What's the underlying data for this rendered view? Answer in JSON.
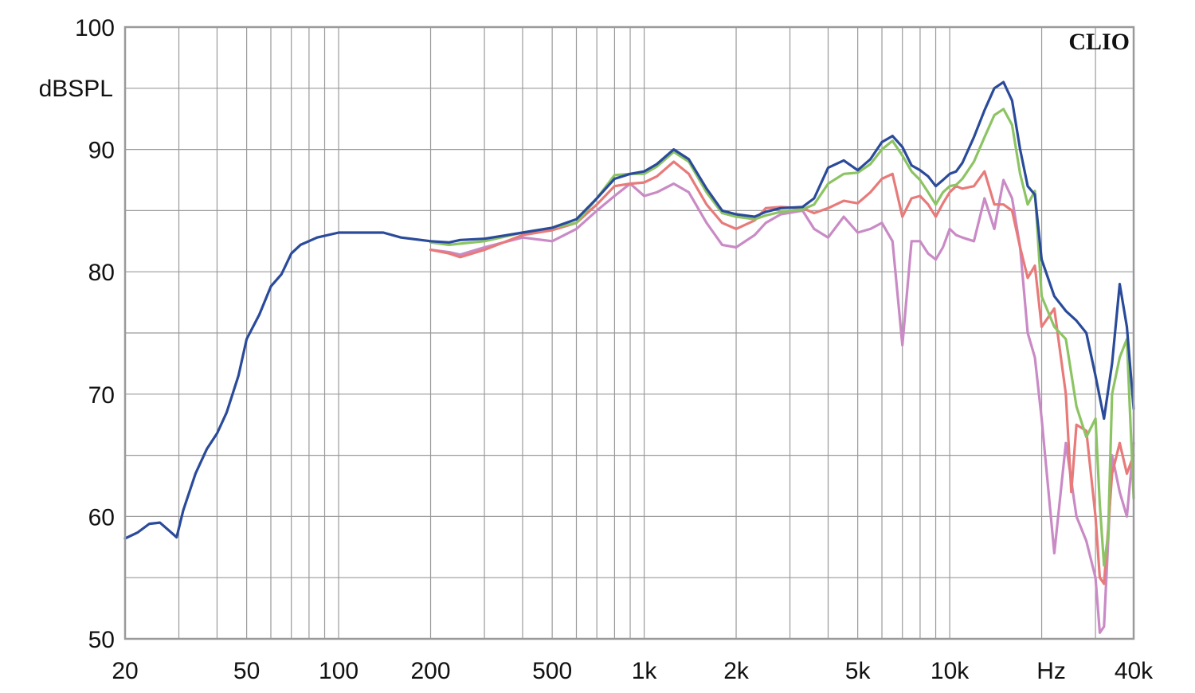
{
  "chart_data": {
    "type": "line",
    "brand": "CLIO",
    "ylabel": "dBSPL",
    "xunit": "Hz",
    "x_scale": "log",
    "xlim": [
      20,
      40000
    ],
    "ylim": [
      50,
      100
    ],
    "grid": true,
    "x_tick_labels": [
      {
        "value": 20,
        "label": "20"
      },
      {
        "value": 50,
        "label": "50"
      },
      {
        "value": 100,
        "label": "100"
      },
      {
        "value": 200,
        "label": "200"
      },
      {
        "value": 500,
        "label": "500"
      },
      {
        "value": 1000,
        "label": "1k"
      },
      {
        "value": 2000,
        "label": "2k"
      },
      {
        "value": 5000,
        "label": "5k"
      },
      {
        "value": 10000,
        "label": "10k"
      },
      {
        "value": 40000,
        "label": "40k"
      }
    ],
    "y_ticks": [
      50,
      60,
      70,
      80,
      90,
      100
    ],
    "series": [
      {
        "color": "#2a4a9a",
        "points": [
          [
            20,
            58.2
          ],
          [
            22,
            58.7
          ],
          [
            24,
            59.4
          ],
          [
            26,
            59.5
          ],
          [
            28,
            58.8
          ],
          [
            29.5,
            58.3
          ],
          [
            31,
            60.5
          ],
          [
            34,
            63.5
          ],
          [
            37,
            65.5
          ],
          [
            40,
            66.8
          ],
          [
            43,
            68.5
          ],
          [
            47,
            71.5
          ],
          [
            50,
            74.5
          ],
          [
            55,
            76.5
          ],
          [
            60,
            78.8
          ],
          [
            65,
            79.8
          ],
          [
            70,
            81.5
          ],
          [
            75,
            82.2
          ],
          [
            85,
            82.8
          ],
          [
            100,
            83.2
          ],
          [
            120,
            83.2
          ],
          [
            140,
            83.2
          ],
          [
            160,
            82.8
          ],
          [
            200,
            82.5
          ],
          [
            230,
            82.4
          ],
          [
            250,
            82.6
          ],
          [
            300,
            82.7
          ],
          [
            400,
            83.2
          ],
          [
            500,
            83.6
          ],
          [
            600,
            84.3
          ],
          [
            700,
            86.0
          ],
          [
            800,
            87.6
          ],
          [
            900,
            88.0
          ],
          [
            1000,
            88.2
          ],
          [
            1100,
            88.8
          ],
          [
            1250,
            90.0
          ],
          [
            1400,
            89.2
          ],
          [
            1600,
            86.8
          ],
          [
            1800,
            85.0
          ],
          [
            2000,
            84.7
          ],
          [
            2300,
            84.5
          ],
          [
            2500,
            84.9
          ],
          [
            2800,
            85.2
          ],
          [
            3300,
            85.3
          ],
          [
            3600,
            86.0
          ],
          [
            4000,
            88.5
          ],
          [
            4500,
            89.1
          ],
          [
            5000,
            88.3
          ],
          [
            5500,
            89.2
          ],
          [
            6000,
            90.6
          ],
          [
            6500,
            91.1
          ],
          [
            7000,
            90.2
          ],
          [
            7500,
            88.7
          ],
          [
            8000,
            88.3
          ],
          [
            8500,
            87.8
          ],
          [
            9000,
            87.0
          ],
          [
            9500,
            87.5
          ],
          [
            10000,
            88.0
          ],
          [
            10500,
            88.2
          ],
          [
            11000,
            88.9
          ],
          [
            12000,
            91.0
          ],
          [
            13000,
            93.2
          ],
          [
            14000,
            95.0
          ],
          [
            15000,
            95.5
          ],
          [
            16000,
            94.0
          ],
          [
            17000,
            90.0
          ],
          [
            18000,
            87.0
          ],
          [
            19000,
            86.3
          ],
          [
            20000,
            81.0
          ],
          [
            22000,
            78.0
          ],
          [
            24000,
            76.8
          ],
          [
            26000,
            76.0
          ],
          [
            28000,
            75.0
          ],
          [
            30000,
            71.5
          ],
          [
            32000,
            68.0
          ],
          [
            34000,
            72.5
          ],
          [
            36000,
            79.0
          ],
          [
            38000,
            75.5
          ],
          [
            40000,
            68.8
          ]
        ]
      },
      {
        "color": "#8cc464",
        "points": [
          [
            200,
            82.4
          ],
          [
            230,
            82.2
          ],
          [
            250,
            82.3
          ],
          [
            300,
            82.5
          ],
          [
            400,
            83.2
          ],
          [
            500,
            83.6
          ],
          [
            600,
            84.0
          ],
          [
            700,
            86.0
          ],
          [
            800,
            87.9
          ],
          [
            900,
            88.0
          ],
          [
            1000,
            88.0
          ],
          [
            1100,
            88.6
          ],
          [
            1250,
            89.8
          ],
          [
            1400,
            89.0
          ],
          [
            1600,
            86.5
          ],
          [
            1800,
            84.8
          ],
          [
            2000,
            84.5
          ],
          [
            2300,
            84.3
          ],
          [
            2500,
            84.6
          ],
          [
            2800,
            84.9
          ],
          [
            3300,
            85.1
          ],
          [
            3600,
            85.5
          ],
          [
            4000,
            87.2
          ],
          [
            4500,
            88.0
          ],
          [
            5000,
            88.1
          ],
          [
            5500,
            88.8
          ],
          [
            6000,
            90.0
          ],
          [
            6500,
            90.7
          ],
          [
            7000,
            89.5
          ],
          [
            7500,
            88.2
          ],
          [
            8000,
            87.5
          ],
          [
            8500,
            86.5
          ],
          [
            9000,
            85.5
          ],
          [
            9500,
            86.5
          ],
          [
            10000,
            87.0
          ],
          [
            10500,
            87.1
          ],
          [
            11000,
            87.6
          ],
          [
            12000,
            89.0
          ],
          [
            13000,
            91.0
          ],
          [
            14000,
            92.8
          ],
          [
            15000,
            93.3
          ],
          [
            16000,
            92.0
          ],
          [
            17000,
            88.0
          ],
          [
            18000,
            85.5
          ],
          [
            19000,
            86.6
          ],
          [
            20000,
            78.0
          ],
          [
            22000,
            75.5
          ],
          [
            24000,
            74.5
          ],
          [
            26000,
            69.0
          ],
          [
            28000,
            66.5
          ],
          [
            30000,
            68.0
          ],
          [
            31000,
            61.0
          ],
          [
            32000,
            56.0
          ],
          [
            33000,
            58.5
          ],
          [
            34000,
            70.0
          ],
          [
            36000,
            73.0
          ],
          [
            38000,
            74.5
          ],
          [
            40000,
            61.5
          ]
        ]
      },
      {
        "color": "#e87a7a",
        "points": [
          [
            200,
            81.8
          ],
          [
            230,
            81.5
          ],
          [
            250,
            81.2
          ],
          [
            300,
            81.8
          ],
          [
            400,
            83.0
          ],
          [
            500,
            83.4
          ],
          [
            600,
            84.0
          ],
          [
            700,
            85.5
          ],
          [
            800,
            87.0
          ],
          [
            900,
            87.2
          ],
          [
            1000,
            87.3
          ],
          [
            1100,
            87.8
          ],
          [
            1250,
            89.0
          ],
          [
            1400,
            88.0
          ],
          [
            1600,
            85.5
          ],
          [
            1800,
            84.0
          ],
          [
            2000,
            83.5
          ],
          [
            2300,
            84.2
          ],
          [
            2500,
            85.2
          ],
          [
            2800,
            85.3
          ],
          [
            3300,
            85.2
          ],
          [
            3600,
            84.8
          ],
          [
            4000,
            85.2
          ],
          [
            4500,
            85.8
          ],
          [
            5000,
            85.6
          ],
          [
            5500,
            86.5
          ],
          [
            6000,
            87.6
          ],
          [
            6500,
            88.0
          ],
          [
            7000,
            84.5
          ],
          [
            7500,
            86.0
          ],
          [
            8000,
            86.2
          ],
          [
            8500,
            85.5
          ],
          [
            9000,
            84.5
          ],
          [
            9500,
            85.6
          ],
          [
            10000,
            86.5
          ],
          [
            10500,
            87.0
          ],
          [
            11000,
            86.8
          ],
          [
            12000,
            87.0
          ],
          [
            13000,
            88.2
          ],
          [
            14000,
            85.5
          ],
          [
            15000,
            85.5
          ],
          [
            16000,
            85.0
          ],
          [
            17000,
            82.0
          ],
          [
            18000,
            79.5
          ],
          [
            19000,
            80.5
          ],
          [
            20000,
            75.5
          ],
          [
            22000,
            77.0
          ],
          [
            24000,
            70.0
          ],
          [
            25000,
            62.0
          ],
          [
            26000,
            67.5
          ],
          [
            28000,
            67.0
          ],
          [
            30000,
            60.0
          ],
          [
            31000,
            55.0
          ],
          [
            32000,
            54.5
          ],
          [
            33000,
            59.0
          ],
          [
            34000,
            63.5
          ],
          [
            36000,
            66.0
          ],
          [
            38000,
            63.5
          ],
          [
            40000,
            65.0
          ]
        ]
      },
      {
        "color": "#c98ac5",
        "points": [
          [
            200,
            81.8
          ],
          [
            230,
            81.6
          ],
          [
            250,
            81.4
          ],
          [
            300,
            82.0
          ],
          [
            400,
            82.8
          ],
          [
            500,
            82.5
          ],
          [
            600,
            83.5
          ],
          [
            700,
            85.0
          ],
          [
            800,
            86.2
          ],
          [
            900,
            87.2
          ],
          [
            1000,
            86.2
          ],
          [
            1100,
            86.5
          ],
          [
            1250,
            87.2
          ],
          [
            1400,
            86.5
          ],
          [
            1600,
            84.0
          ],
          [
            1800,
            82.2
          ],
          [
            2000,
            82.0
          ],
          [
            2300,
            83.0
          ],
          [
            2500,
            84.0
          ],
          [
            2800,
            84.7
          ],
          [
            3300,
            85.0
          ],
          [
            3600,
            83.5
          ],
          [
            4000,
            82.8
          ],
          [
            4500,
            84.5
          ],
          [
            5000,
            83.2
          ],
          [
            5500,
            83.5
          ],
          [
            6000,
            84.0
          ],
          [
            6500,
            82.5
          ],
          [
            7000,
            74.0
          ],
          [
            7500,
            82.5
          ],
          [
            8000,
            82.5
          ],
          [
            8500,
            81.5
          ],
          [
            9000,
            81.0
          ],
          [
            9500,
            82.0
          ],
          [
            10000,
            83.5
          ],
          [
            10500,
            83.0
          ],
          [
            11000,
            82.8
          ],
          [
            12000,
            82.5
          ],
          [
            13000,
            86.0
          ],
          [
            14000,
            83.5
          ],
          [
            15000,
            87.5
          ],
          [
            16000,
            86.0
          ],
          [
            17000,
            82.0
          ],
          [
            18000,
            75.0
          ],
          [
            19000,
            73.0
          ],
          [
            20000,
            68.0
          ],
          [
            22000,
            57.0
          ],
          [
            24000,
            66.0
          ],
          [
            26000,
            60.0
          ],
          [
            28000,
            58.0
          ],
          [
            30000,
            55.0
          ],
          [
            31000,
            50.5
          ],
          [
            32000,
            51.0
          ],
          [
            33000,
            58.0
          ],
          [
            34000,
            65.0
          ],
          [
            36000,
            62.0
          ],
          [
            38000,
            60.0
          ],
          [
            40000,
            66.0
          ]
        ]
      }
    ]
  }
}
